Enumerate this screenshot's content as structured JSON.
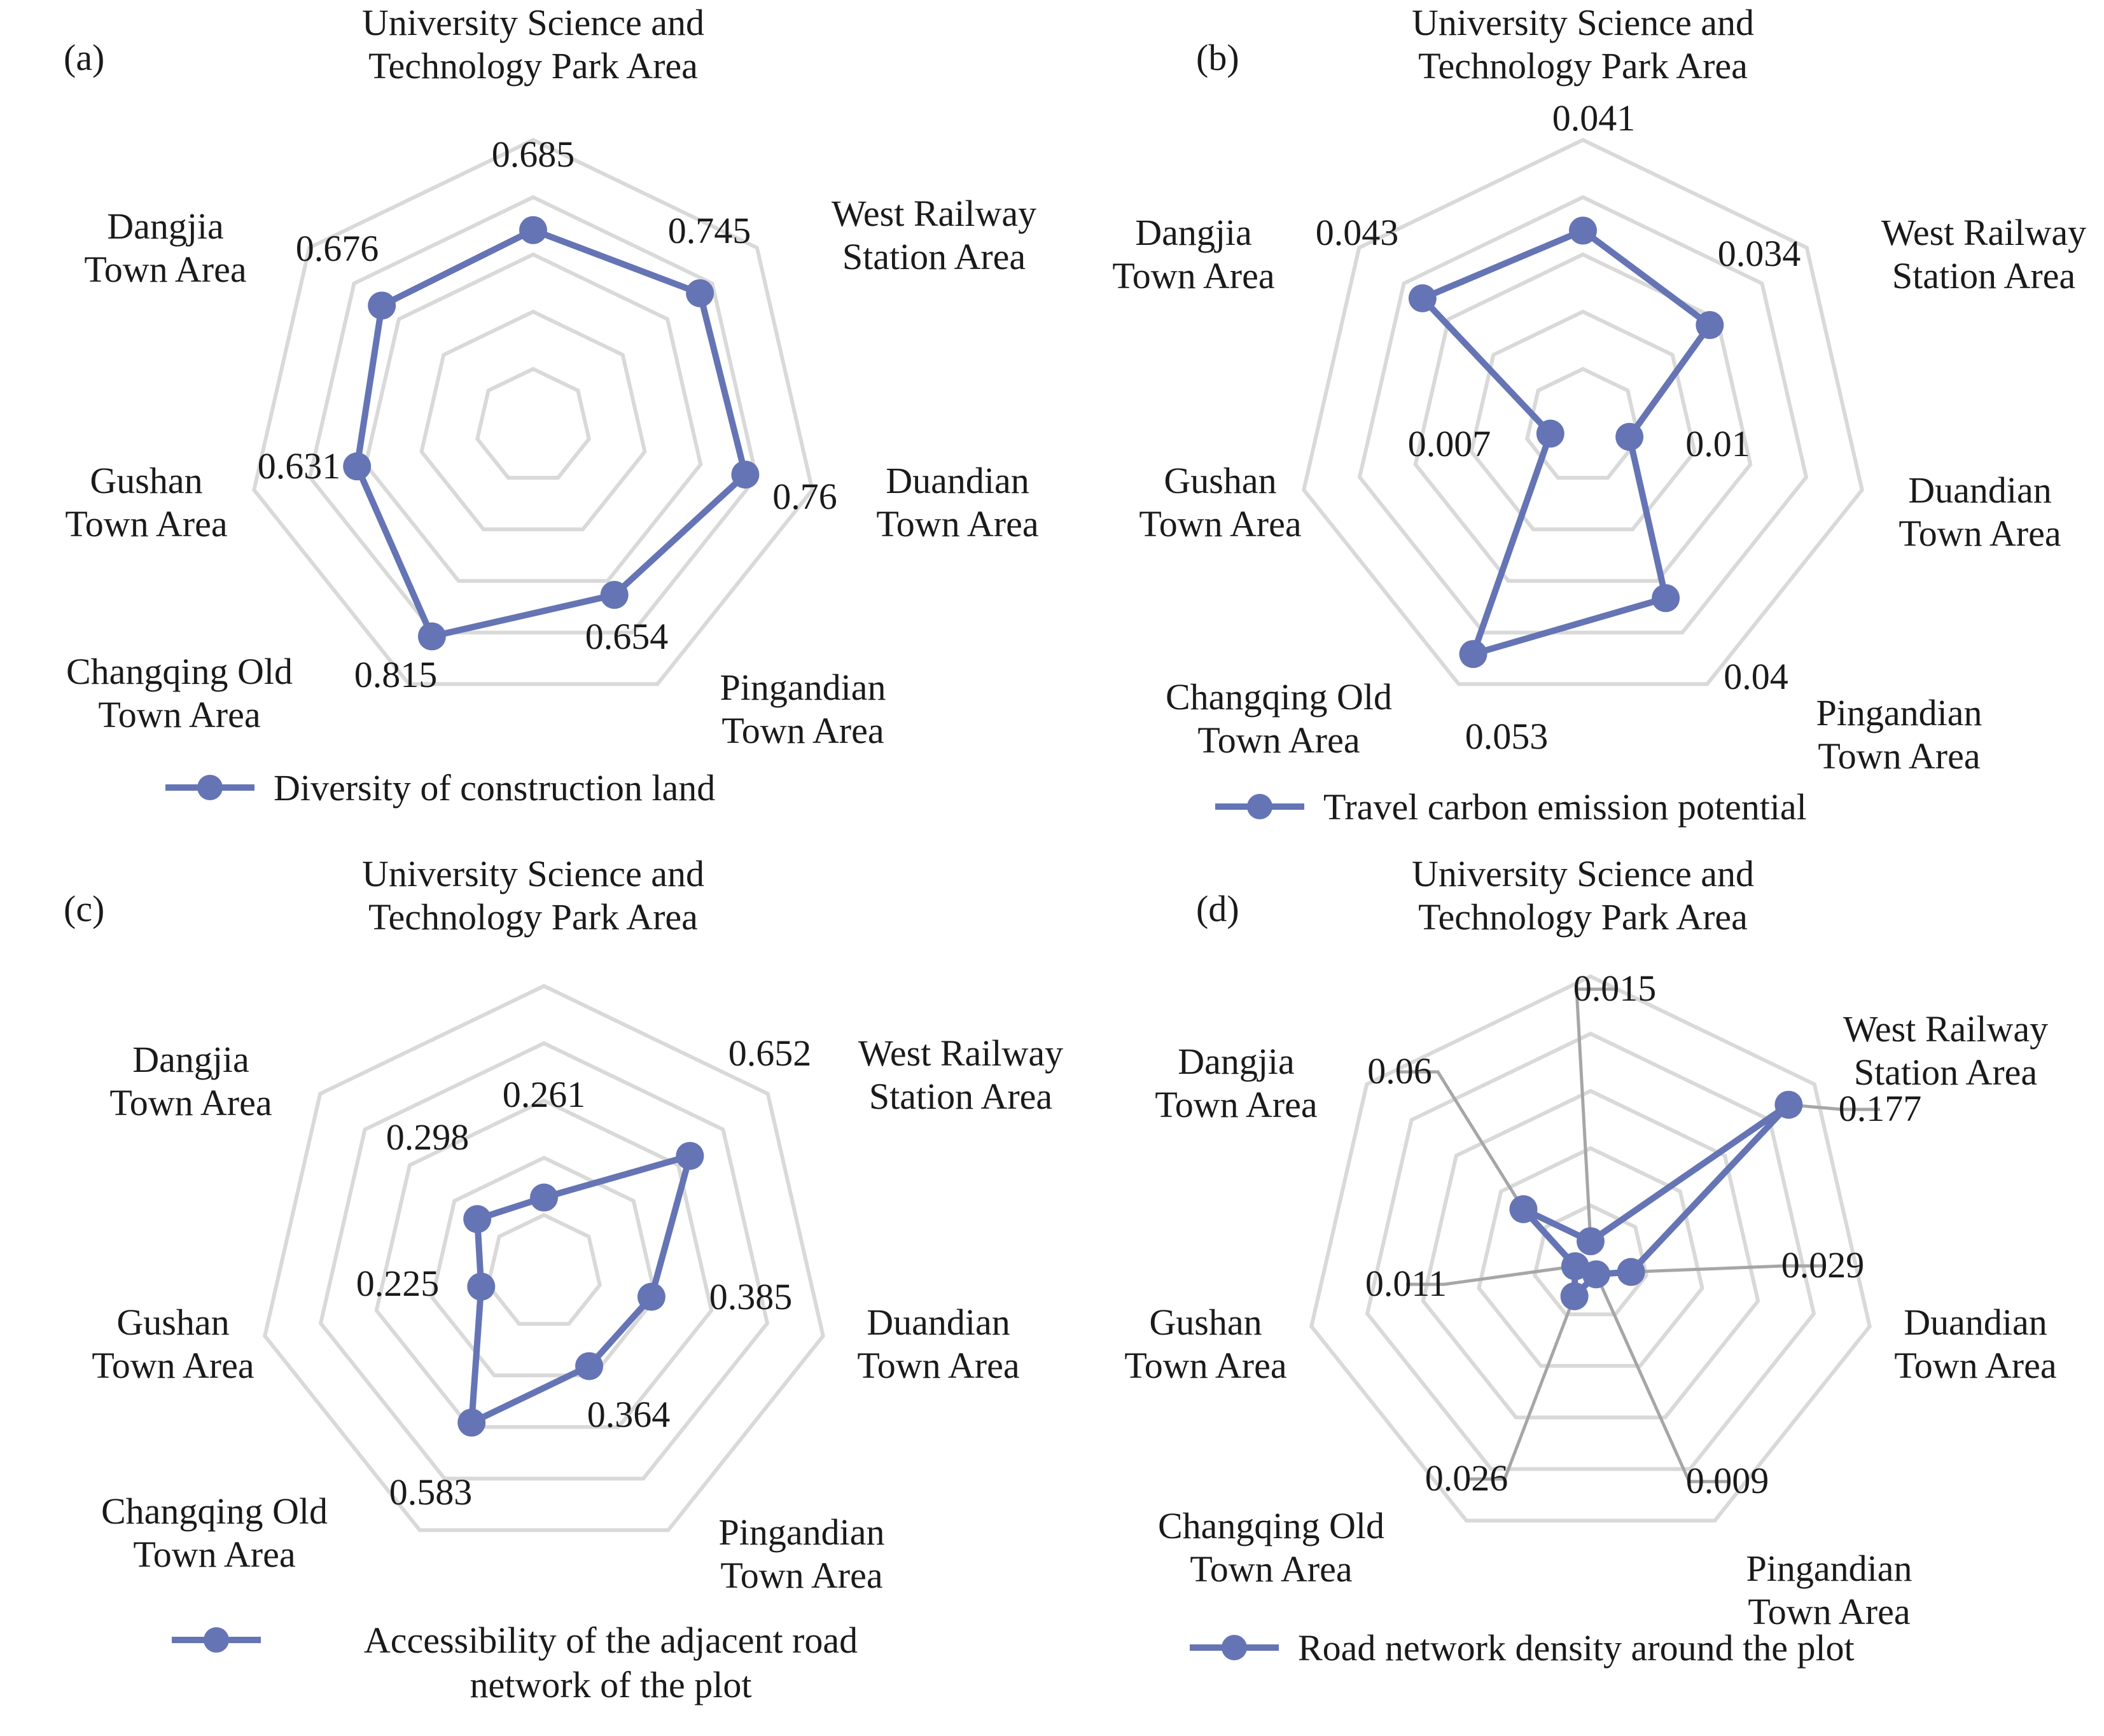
{
  "colors": {
    "series": "#6574b4",
    "grid": "#d9d9d9",
    "leader": "#a6a6a6"
  },
  "chart_data": [
    {
      "type": "radar",
      "panel": "(a)",
      "categories": [
        "University Science and Technology Park Area",
        "West Railway Station Area",
        "Duandian Town Area",
        "Pingandian Town Area",
        "Changqing Old Town Area",
        "Gushan Town Area",
        "Dangjia Town Area"
      ],
      "category_lines": [
        [
          "University Science and",
          "Technology Park Area"
        ],
        [
          "West Railway",
          "Station Area"
        ],
        [
          "Duandian",
          "Town Area"
        ],
        [
          "Pingandian",
          "Town Area"
        ],
        [
          "Changqing Old",
          "Town Area"
        ],
        [
          "Gushan",
          "Town Area"
        ],
        [
          "Dangjia",
          "Town Area"
        ]
      ],
      "series": [
        {
          "name": "Diversity of construction land",
          "values": [
            0.685,
            0.745,
            0.76,
            0.654,
            0.815,
            0.631,
            0.676
          ]
        }
      ],
      "value_labels": [
        "0.685",
        "0.745",
        "0.76",
        "0.654",
        "0.815",
        "0.631",
        "0.676"
      ],
      "rmax": 1.0,
      "legend": {
        "position": "bottom",
        "lines": [
          "Diversity of construction land"
        ]
      }
    },
    {
      "type": "radar",
      "panel": "(b)",
      "categories": [
        "University Science and Technology Park Area",
        "West Railway Station Area",
        "Duandian Town Area",
        "Pingandian Town Area",
        "Changqing Old Town Area",
        "Gushan Town Area",
        "Dangjia Town Area"
      ],
      "category_lines": [
        [
          "University Science and",
          "Technology Park Area"
        ],
        [
          "West Railway",
          "Station Area"
        ],
        [
          "Duandian",
          "Town Area"
        ],
        [
          "Pingandian",
          "Town Area"
        ],
        [
          "Changqing Old",
          "Town Area"
        ],
        [
          "Gushan",
          "Town Area"
        ],
        [
          "Dangjia",
          "Town Area"
        ]
      ],
      "series": [
        {
          "name": "Travel carbon emission potential",
          "values": [
            0.041,
            0.034,
            0.01,
            0.04,
            0.053,
            0.007,
            0.043
          ]
        }
      ],
      "value_labels": [
        "0.041",
        "0.034",
        "0.01",
        "0.04",
        "0.053",
        "0.007",
        "0.043"
      ],
      "rmax": 0.06,
      "legend": {
        "position": "bottom",
        "lines": [
          "Travel carbon emission potential"
        ]
      }
    },
    {
      "type": "radar",
      "panel": "(c)",
      "categories": [
        "University Science and Technology Park Area",
        "West Railway Station Area",
        "Duandian Town Area",
        "Pingandian Town Area",
        "Changqing Old Town Area",
        "Gushan Town Area",
        "Dangjia Town Area"
      ],
      "category_lines": [
        [
          "University Science and",
          "Technology Park Area"
        ],
        [
          "West Railway",
          "Station Area"
        ],
        [
          "Duandian",
          "Town Area"
        ],
        [
          "Pingandian",
          "Town Area"
        ],
        [
          "Changqing Old",
          "Town Area"
        ],
        [
          "Gushan",
          "Town Area"
        ],
        [
          "Dangjia",
          "Town Area"
        ]
      ],
      "series": [
        {
          "name": "Accessibility of the adjacent road network of the plot",
          "values": [
            0.261,
            0.652,
            0.385,
            0.364,
            0.583,
            0.225,
            0.298
          ]
        }
      ],
      "value_labels": [
        "0.261",
        "0.652",
        "0.385",
        "0.364",
        "0.583",
        "0.225",
        "0.298"
      ],
      "rmax": 1.0,
      "legend": {
        "position": "bottom",
        "lines": [
          "Accessibility of the adjacent road",
          "network of the plot"
        ]
      }
    },
    {
      "type": "radar",
      "panel": "(d)",
      "categories": [
        "University Science and Technology Park Area",
        "West Railway Station Area",
        "Duandian Town Area",
        "Pingandian Town Area",
        "Changqing Old Town Area",
        "Gushan Town Area",
        "Dangjia Town Area"
      ],
      "category_lines": [
        [
          "University Science and",
          "Technology Park Area"
        ],
        [
          "West Railway",
          "Station Area"
        ],
        [
          "Duandian",
          "Town Area"
        ],
        [
          "Pingandian",
          "Town Area"
        ],
        [
          "Changqing Old",
          "Town Area"
        ],
        [
          "Gushan",
          "Town Area"
        ],
        [
          "Dangjia",
          "Town Area"
        ]
      ],
      "series": [
        {
          "name": "Road network density around the plot",
          "values": [
            0.015,
            0.177,
            0.029,
            0.009,
            0.026,
            0.011,
            0.06
          ]
        }
      ],
      "value_labels": [
        "0.015",
        "0.177",
        "0.029",
        "0.009",
        "0.026",
        "0.011",
        "0.06"
      ],
      "rmax": 0.2,
      "legend": {
        "position": "bottom",
        "lines": [
          "Road network density around the plot"
        ]
      }
    }
  ]
}
